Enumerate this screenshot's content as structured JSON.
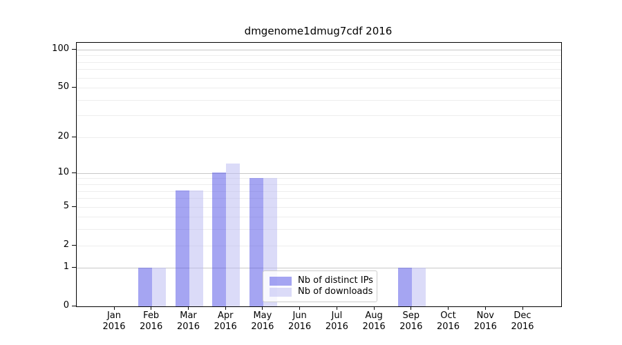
{
  "chart_data": {
    "type": "bar",
    "title": "dmgenome1dmug7cdf 2016",
    "x": {
      "categories": [
        "Jan",
        "Feb",
        "Mar",
        "Apr",
        "May",
        "Jun",
        "Jul",
        "Aug",
        "Sep",
        "Oct",
        "Nov",
        "Dec"
      ],
      "year_label": "2016"
    },
    "series": [
      {
        "name": "Nb of distinct IPs",
        "color": "rgba(75,75,230,0.5)",
        "values": [
          0,
          1,
          7,
          10,
          9,
          0,
          0,
          0,
          1,
          0,
          0,
          0
        ]
      },
      {
        "name": "Nb of downloads",
        "color": "rgba(184,184,242,0.5)",
        "values": [
          0,
          1,
          7,
          12,
          9,
          0,
          0,
          0,
          1,
          0,
          0,
          0
        ]
      }
    ],
    "yscale": "log1p",
    "ylim": [
      0,
      113
    ],
    "yticks": [
      0,
      1,
      2,
      5,
      10,
      20,
      50,
      100
    ],
    "grid": "on",
    "gridlines": {
      "major": [
        1,
        10,
        100
      ],
      "minor": [
        2,
        3,
        4,
        5,
        6,
        7,
        8,
        9,
        20,
        30,
        40,
        50,
        60,
        70,
        80,
        90
      ],
      "major_color": "#c8c8c8",
      "minor_color": "#ededed"
    },
    "legend_position": "lower center",
    "axis_color": "#000000"
  }
}
